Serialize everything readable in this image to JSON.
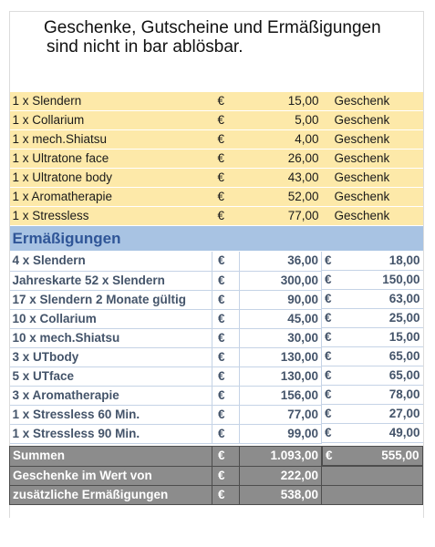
{
  "heading": {
    "line1": "Geschenke, Gutscheine und Ermäßigungen",
    "line2": "sind nicht in bar ablösbar."
  },
  "currency": "€",
  "gifts": [
    {
      "item": "1 x Slendern",
      "price": "15,00",
      "type": "Geschenk"
    },
    {
      "item": "1 x Collarium",
      "price": "5,00",
      "type": "Geschenk"
    },
    {
      "item": "1 x mech.Shiatsu",
      "price": "4,00",
      "type": "Geschenk"
    },
    {
      "item": "1 x Ultratone face",
      "price": "26,00",
      "type": "Geschenk"
    },
    {
      "item": "1 x Ultratone body",
      "price": "43,00",
      "type": "Geschenk"
    },
    {
      "item": "1 x Aromatherapie",
      "price": "52,00",
      "type": "Geschenk"
    },
    {
      "item": "1 x Stressless",
      "price": "77,00",
      "type": "Geschenk"
    }
  ],
  "discounts_title": "Ermäßigungen",
  "discounts": [
    {
      "item": "4 x Slendern",
      "price": "36,00",
      "reduced": "18,00"
    },
    {
      "item": "Jahreskarte 52 x Slendern",
      "price": "300,00",
      "reduced": "150,00"
    },
    {
      "item": "17 x Slendern 2 Monate gültig",
      "price": "90,00",
      "reduced": "63,00"
    },
    {
      "item": "10 x Collarium",
      "price": "45,00",
      "reduced": "25,00"
    },
    {
      "item": "10 x mech.Shiatsu",
      "price": "30,00",
      "reduced": "15,00"
    },
    {
      "item": "3 x UTbody",
      "price": "130,00",
      "reduced": "65,00"
    },
    {
      "item": "5 x UTface",
      "price": "130,00",
      "reduced": "65,00"
    },
    {
      "item": "3 x Aromatherapie",
      "price": "156,00",
      "reduced": "78,00"
    },
    {
      "item": "1 x Stressless 60 Min.",
      "price": "77,00",
      "reduced": "27,00"
    },
    {
      "item": "1 x Stressless 90 Min.",
      "price": "99,00",
      "reduced": "49,00"
    }
  ],
  "summary": {
    "sum_label": "Summen",
    "sum_price": "1.093,00",
    "sum_reduced": "555,00",
    "gifts_label": "Geschenke im Wert von",
    "gifts_value": "222,00",
    "extra_label": "zusätzliche Ermäßigungen",
    "extra_value": "538,00"
  },
  "colors": {
    "gift_row": "#fde9a9",
    "section_header": "#a8c3e3",
    "section_text": "#2f5597",
    "discount_text": "#44546a",
    "summary_row": "#8c8c8c"
  }
}
